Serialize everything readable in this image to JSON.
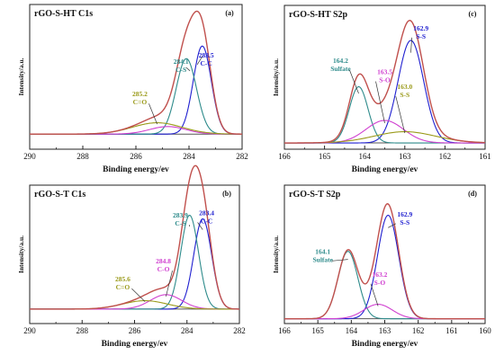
{
  "colors": {
    "envelope": "#c0504d",
    "background": "#555555",
    "frame": "#222222",
    "blue": "#1f1fd0",
    "teal": "#2e8b8b",
    "magenta": "#d040d0",
    "olive": "#9a9a1a"
  },
  "chart_data": [
    {
      "id": "a",
      "type": "line",
      "letter": "(a)",
      "title": "rGO-S-HT C1s",
      "xlabel": "Binding energy/ev",
      "ylabel": "Intensity/a.u.",
      "xlim": [
        290,
        282
      ],
      "ylim": [
        0,
        1.15
      ],
      "x_ticks": [
        "290",
        "288",
        "286",
        "284",
        "282"
      ],
      "x_tick_values": [
        290,
        288,
        286,
        284,
        282
      ],
      "baseline": 0.12,
      "peaks": [
        {
          "center": 283.5,
          "height": 0.7,
          "width": 0.8,
          "color_key": "blue",
          "label_value": "283.5",
          "label_bond": "C-C",
          "label_pos": [
            283.35,
            0.73
          ]
        },
        {
          "center": 284.1,
          "height": 0.6,
          "width": 0.9,
          "color_key": "teal",
          "label_value": "284.1",
          "label_bond": "C-S",
          "label_pos": [
            284.3,
            0.68
          ]
        },
        {
          "center": 284.8,
          "height": 0.06,
          "width": 1.6,
          "color_key": "magenta",
          "label_value": "",
          "label_bond": "",
          "label_pos": null
        },
        {
          "center": 285.2,
          "height": 0.09,
          "width": 2.2,
          "color_key": "olive",
          "label_value": "285.2",
          "label_bond": "C=O",
          "label_pos": [
            285.85,
            0.42
          ]
        }
      ]
    },
    {
      "id": "b",
      "type": "line",
      "letter": "(b)",
      "title": "rGO-S-T C1s",
      "xlabel": "Binding energy/ev",
      "ylabel": "Intensity/a.u.",
      "xlim": [
        290,
        282
      ],
      "ylim": [
        0,
        1.15
      ],
      "x_ticks": [
        "290",
        "288",
        "286",
        "284",
        "282"
      ],
      "x_tick_values": [
        290,
        288,
        286,
        284,
        282
      ],
      "baseline": 0.12,
      "peaks": [
        {
          "center": 283.4,
          "height": 0.75,
          "width": 0.8,
          "color_key": "blue",
          "label_value": "283.4",
          "label_bond": "C-C",
          "label_pos": [
            283.25,
            0.9
          ]
        },
        {
          "center": 283.9,
          "height": 0.78,
          "width": 0.8,
          "color_key": "teal",
          "label_value": "283.9",
          "label_bond": "C-S",
          "label_pos": [
            284.25,
            0.88
          ]
        },
        {
          "center": 284.8,
          "height": 0.12,
          "width": 1.4,
          "color_key": "magenta",
          "label_value": "284.8",
          "label_bond": "C-O",
          "label_pos": [
            284.9,
            0.5
          ]
        },
        {
          "center": 285.6,
          "height": 0.07,
          "width": 2.0,
          "color_key": "olive",
          "label_value": "285.6",
          "label_bond": "C=O",
          "label_pos": [
            286.45,
            0.35
          ]
        }
      ]
    },
    {
      "id": "c",
      "type": "line",
      "letter": "(c)",
      "title": "rGO-S-HT S2p",
      "xlabel": "Binding energy/ev",
      "ylabel": "Intensity/a.u.",
      "xlim": [
        166,
        161
      ],
      "ylim": [
        0,
        1.15
      ],
      "x_ticks": [
        "166",
        "165",
        "164",
        "163",
        "162",
        "161"
      ],
      "x_tick_values": [
        166,
        165,
        164,
        163,
        162,
        161
      ],
      "baseline": 0.05,
      "peaks": [
        {
          "center": 162.85,
          "height": 0.82,
          "width": 0.75,
          "color_key": "blue",
          "label_value": "162.9",
          "label_bond": "S-S",
          "label_pos": [
            162.6,
            0.95
          ]
        },
        {
          "center": 164.15,
          "height": 0.45,
          "width": 0.55,
          "color_key": "teal",
          "label_value": "164.2",
          "label_bond": "Sulfate",
          "label_pos": [
            164.6,
            0.69
          ]
        },
        {
          "center": 163.5,
          "height": 0.18,
          "width": 1.1,
          "color_key": "magenta",
          "label_value": "163.5",
          "label_bond": "S-O",
          "label_pos": [
            163.5,
            0.6
          ]
        },
        {
          "center": 163.0,
          "height": 0.09,
          "width": 1.8,
          "color_key": "olive",
          "label_value": "163.0",
          "label_bond": "S-S",
          "label_pos": [
            163.0,
            0.48
          ]
        }
      ]
    },
    {
      "id": "d",
      "type": "line",
      "letter": "(d)",
      "title": "rGO-S-T S2p",
      "xlabel": "Binding energy/ev",
      "ylabel": "Intensity/a.u.",
      "xlim": [
        166,
        160
      ],
      "ylim": [
        0,
        1.15
      ],
      "x_ticks": [
        "166",
        "165",
        "164",
        "163",
        "162",
        "161",
        "160"
      ],
      "x_tick_values": [
        166,
        165,
        164,
        163,
        162,
        161,
        160
      ],
      "baseline": 0.04,
      "peaks": [
        {
          "center": 162.9,
          "height": 0.86,
          "width": 0.75,
          "color_key": "blue",
          "label_value": "162.9",
          "label_bond": "S-S",
          "label_pos": [
            162.4,
            0.89
          ]
        },
        {
          "center": 164.1,
          "height": 0.56,
          "width": 0.7,
          "color_key": "teal",
          "label_value": "164.1",
          "label_bond": "Sulfate",
          "label_pos": [
            164.85,
            0.58
          ]
        },
        {
          "center": 163.2,
          "height": 0.12,
          "width": 1.0,
          "color_key": "magenta",
          "label_value": "163.2",
          "label_bond": "S-O",
          "label_pos": [
            163.15,
            0.39
          ]
        }
      ]
    }
  ]
}
